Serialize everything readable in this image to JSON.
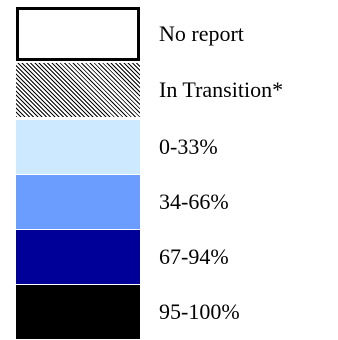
{
  "legend": {
    "items": [
      {
        "label": "No report",
        "swatch": "outlined-white",
        "color": "#ffffff"
      },
      {
        "label": "In Transition*",
        "swatch": "diagonal-hatch",
        "color": "#808080"
      },
      {
        "label": "0-33%",
        "swatch": "solid",
        "color": "#cce9ff"
      },
      {
        "label": "34-66%",
        "swatch": "solid",
        "color": "#6b9cff"
      },
      {
        "label": "67-94%",
        "swatch": "solid",
        "color": "#000099"
      },
      {
        "label": "95-100%",
        "swatch": "solid",
        "color": "#000000"
      }
    ]
  }
}
